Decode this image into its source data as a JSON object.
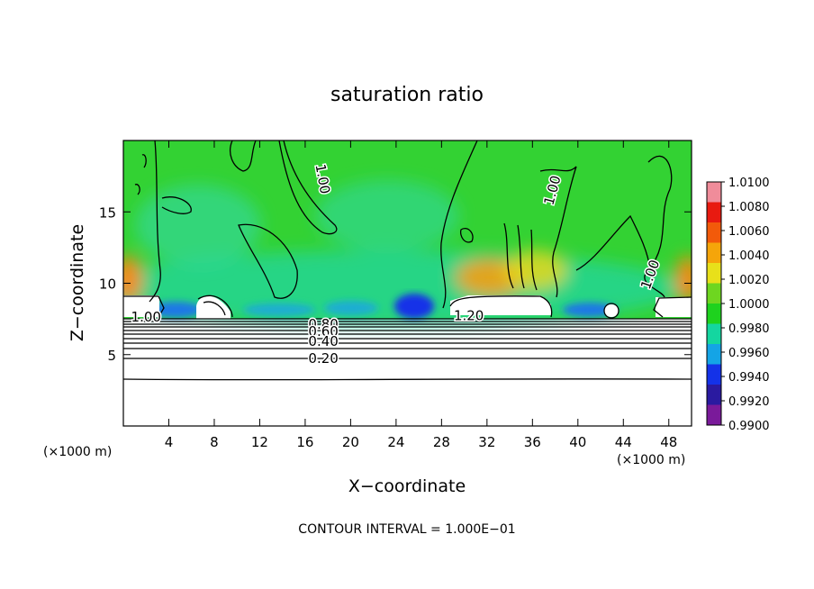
{
  "chart_data": {
    "type": "heatmap",
    "title": "saturation ratio",
    "xlabel": "X−coordinate",
    "ylabel": "Z−coordinate",
    "x_unit": "(×1000 m)",
    "y_unit": "(×1000 m)",
    "xlim": [
      0,
      50
    ],
    "ylim": [
      0,
      20
    ],
    "x_ticks": [
      4,
      8,
      12,
      16,
      20,
      24,
      28,
      32,
      36,
      40,
      44,
      48
    ],
    "y_ticks": [
      5,
      10,
      15
    ],
    "contour_note": "CONTOUR INTERVAL = 1.000E−01",
    "contour_labels": [
      {
        "text": "1.00",
        "x": 17.5,
        "y": 17.3,
        "rotate": 80
      },
      {
        "text": "1.00",
        "x": 37.8,
        "y": 16.5,
        "rotate": -75
      },
      {
        "text": "1.00",
        "x": 46.4,
        "y": 10.6,
        "rotate": -70
      },
      {
        "text": "1.00",
        "x": 2.0,
        "y": 7.6,
        "rotate": 0
      },
      {
        "text": "1.20",
        "x": 30.4,
        "y": 7.7,
        "rotate": 0
      },
      {
        "text": "0.80",
        "x": 17.6,
        "y": 7.1,
        "rotate": 0
      },
      {
        "text": "0.60",
        "x": 17.6,
        "y": 6.6,
        "rotate": 0
      },
      {
        "text": "0.40",
        "x": 17.6,
        "y": 5.9,
        "rotate": 0
      },
      {
        "text": "0.20",
        "x": 17.6,
        "y": 4.7,
        "rotate": 0
      }
    ],
    "colorbar": {
      "labels": [
        "1.0100",
        "1.0080",
        "1.0060",
        "1.0040",
        "1.0020",
        "1.0000",
        "0.9980",
        "0.9960",
        "0.9940",
        "0.9920",
        "0.9900"
      ],
      "colors": [
        "#f08c9a",
        "#e81a10",
        "#f25a0a",
        "#f5a50a",
        "#e8e01a",
        "#6ed620",
        "#1ed21e",
        "#14d6a0",
        "#14a4e6",
        "#1432e8",
        "#2a1aa0",
        "#7a1a9a"
      ]
    }
  }
}
